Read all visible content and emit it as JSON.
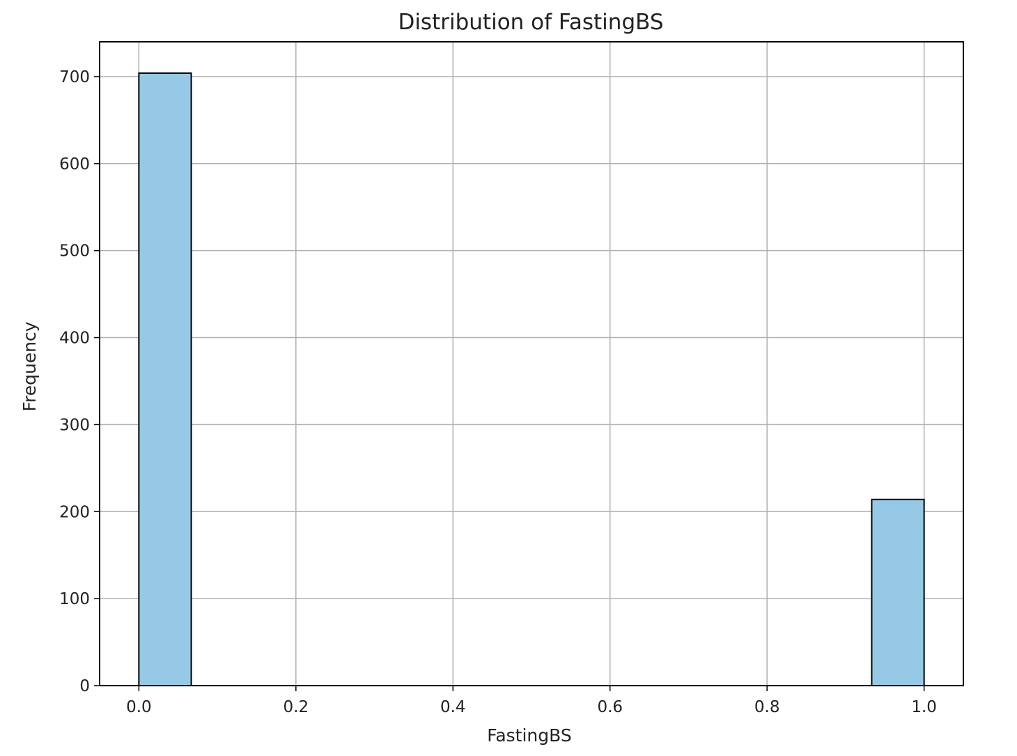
{
  "chart_data": {
    "type": "bar",
    "title": "Distribution of FastingBS",
    "xlabel": "FastingBS",
    "ylabel": "Frequency",
    "xlim": [
      -0.05,
      1.05
    ],
    "ylim": [
      0,
      740
    ],
    "x_ticks": [
      "0.0",
      "0.2",
      "0.4",
      "0.6",
      "0.8",
      "1.0"
    ],
    "y_ticks": [
      "0",
      "100",
      "200",
      "300",
      "400",
      "500",
      "600",
      "700"
    ],
    "grid": true,
    "bins": [
      {
        "x0": 0.0,
        "x1": 0.0667,
        "value": 704
      },
      {
        "x0": 0.9333,
        "x1": 1.0,
        "value": 214
      }
    ],
    "colors": {
      "bar_fill": "#95c9e6",
      "bar_edge": "#000000",
      "grid": "#b0b0b0",
      "axes": "#000000"
    }
  }
}
